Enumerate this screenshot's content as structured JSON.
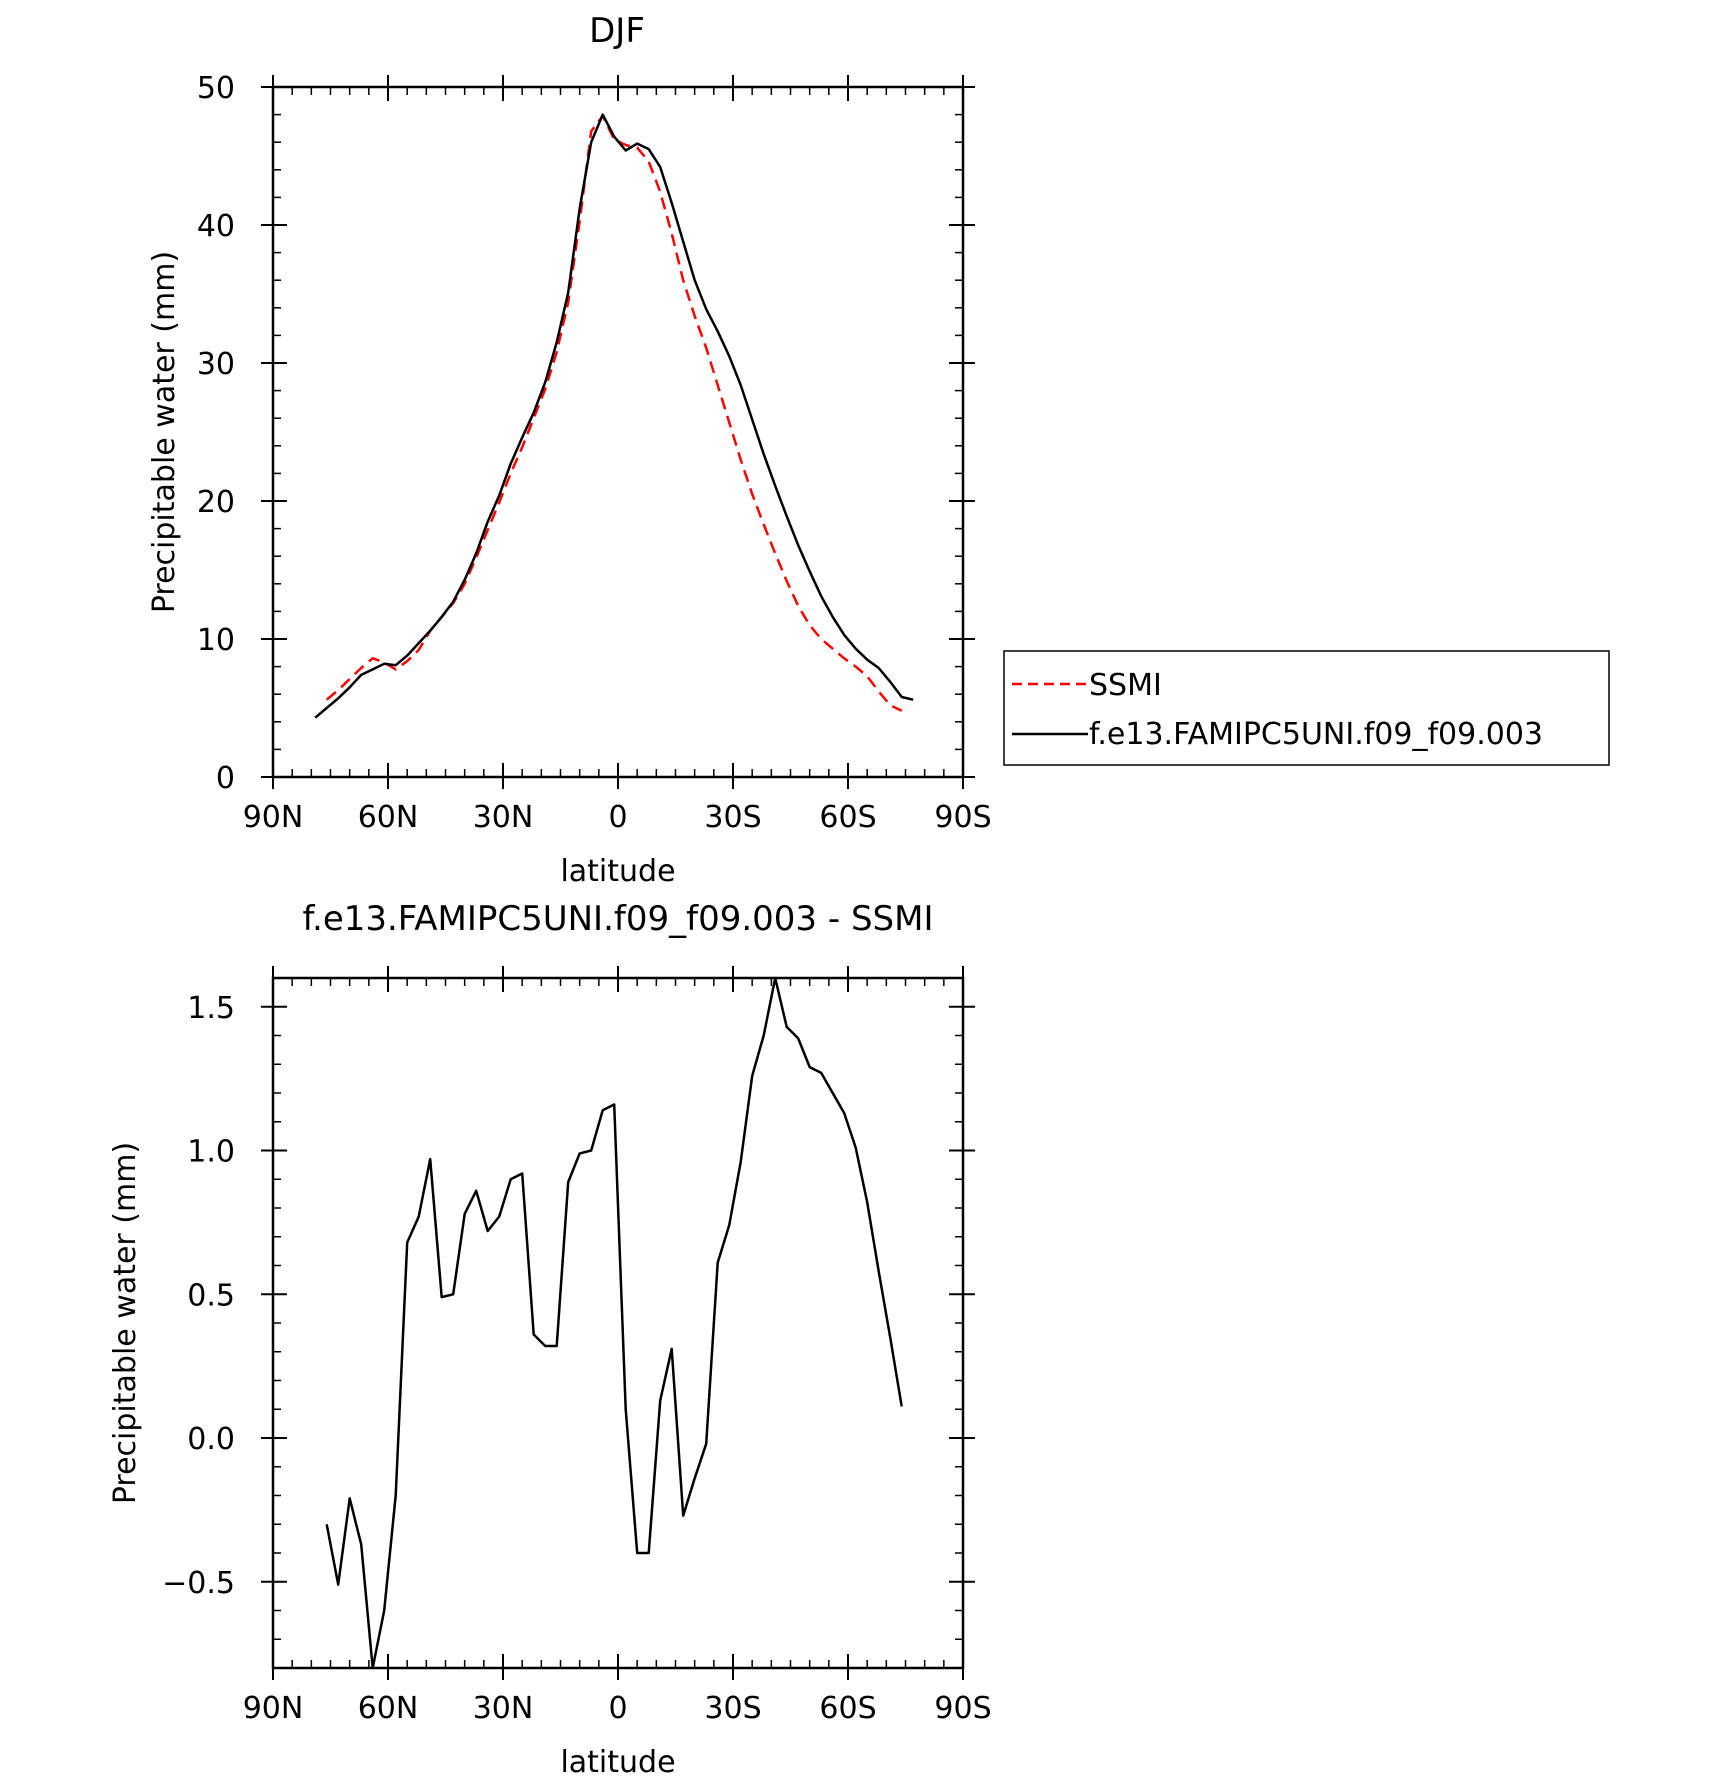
{
  "chart_data": [
    {
      "type": "line",
      "title": "DJF",
      "xlabel": "latitude",
      "ylabel": "Precipitable water (mm)",
      "xlim": [
        90,
        -90
      ],
      "ylim": [
        0,
        50
      ],
      "x_ticks": [
        90,
        60,
        30,
        0,
        -30,
        -60,
        -90
      ],
      "x_tick_labels": [
        "90N",
        "60N",
        "30N",
        "0",
        "30S",
        "60S",
        "90S"
      ],
      "y_ticks": [
        0,
        10,
        20,
        30,
        40,
        50
      ],
      "y_tick_labels": [
        "0",
        "10",
        "20",
        "30",
        "40",
        "50"
      ],
      "legend": {
        "placement": "right",
        "entries": [
          {
            "label": "SSMI",
            "color": "#ff0000",
            "style": "dashed"
          },
          {
            "label": "f.e13.FAMIPC5UNI.f09_f09.003",
            "color": "#000000",
            "style": "solid"
          }
        ]
      },
      "series": [
        {
          "name": "SSMI",
          "color": "#ff0000",
          "style": "dashed",
          "x": [
            76,
            73,
            70,
            67,
            64,
            61,
            58,
            55,
            52,
            49,
            46,
            43,
            40,
            37,
            34,
            31,
            28,
            25,
            22,
            19,
            16,
            13,
            10,
            7,
            4,
            1,
            -2,
            -5,
            -8,
            -11,
            -14,
            -17,
            -20,
            -23,
            -26,
            -29,
            -32,
            -35,
            -38,
            -41,
            -44,
            -47,
            -50,
            -53,
            -56,
            -59,
            -62,
            -65,
            -68,
            -71,
            -74
          ],
          "y": [
            5.6,
            6.3,
            7.1,
            7.9,
            8.6,
            8.3,
            7.8,
            8.4,
            9.2,
            10.6,
            11.6,
            12.6,
            14.0,
            15.9,
            17.9,
            19.9,
            22.0,
            23.9,
            26.0,
            28.1,
            30.8,
            34.4,
            40.3,
            46.8,
            47.9,
            46.2,
            45.8,
            45.6,
            44.6,
            42.4,
            39.4,
            36.0,
            33.4,
            31.1,
            28.4,
            25.7,
            23.0,
            20.5,
            18.3,
            16.2,
            14.2,
            12.4,
            11.0,
            10.0,
            9.3,
            8.6,
            8.0,
            7.3,
            6.2,
            5.2,
            4.8
          ]
        },
        {
          "name": "f.e13.FAMIPC5UNI.f09_f09.003",
          "color": "#000000",
          "style": "solid",
          "x": [
            79,
            76,
            73,
            70,
            67,
            64,
            61,
            58,
            55,
            52,
            49,
            46,
            43,
            40,
            37,
            34,
            31,
            28,
            25,
            22,
            19,
            16,
            13,
            10,
            7,
            4,
            1,
            -2,
            -5,
            -8,
            -11,
            -14,
            -17,
            -20,
            -23,
            -26,
            -29,
            -32,
            -35,
            -38,
            -41,
            -44,
            -47,
            -50,
            -53,
            -56,
            -59,
            -62,
            -65,
            -68,
            -71,
            -74,
            -77
          ],
          "y": [
            4.3,
            5.0,
            5.7,
            6.5,
            7.4,
            7.8,
            8.2,
            8.1,
            8.8,
            9.7,
            10.6,
            11.6,
            12.7,
            14.3,
            16.2,
            18.5,
            20.4,
            22.7,
            24.6,
            26.4,
            28.6,
            31.5,
            35.1,
            41.2,
            46.0,
            48.0,
            46.4,
            45.4,
            45.9,
            45.5,
            44.2,
            41.6,
            38.8,
            36.0,
            33.9,
            32.3,
            30.5,
            28.4,
            25.9,
            23.4,
            21.1,
            18.9,
            16.8,
            14.9,
            13.1,
            11.6,
            10.3,
            9.3,
            8.5,
            7.9,
            6.9,
            5.8,
            5.6
          ]
        }
      ]
    },
    {
      "type": "line",
      "title": "f.e13.FAMIPC5UNI.f09_f09.003 - SSMI",
      "xlabel": "latitude",
      "ylabel": "Precipitable water (mm)",
      "xlim": [
        90,
        -90
      ],
      "ylim": [
        -0.8,
        1.6
      ],
      "x_ticks": [
        90,
        60,
        30,
        0,
        -30,
        -60,
        -90
      ],
      "x_tick_labels": [
        "90N",
        "60N",
        "30N",
        "0",
        "30S",
        "60S",
        "90S"
      ],
      "y_ticks": [
        -0.5,
        0.0,
        0.5,
        1.0,
        1.5
      ],
      "y_tick_labels": [
        "−0.5",
        "0.0",
        "0.5",
        "1.0",
        "1.5"
      ],
      "series": [
        {
          "color": "#000000",
          "style": "solid",
          "x": [
            76,
            73,
            70,
            67,
            64,
            61,
            58,
            55,
            52,
            49,
            46,
            43,
            40,
            37,
            34,
            31,
            28,
            25,
            22,
            19,
            16,
            13,
            10,
            7,
            4,
            1,
            -2,
            -5,
            -8,
            -11,
            -14,
            -17,
            -20,
            -23,
            -26,
            -29,
            -32,
            -35,
            -38,
            -41,
            -44,
            -47,
            -50,
            -53,
            -56,
            -59,
            -62,
            -65,
            -68,
            -71,
            -74
          ],
          "y": [
            -0.3,
            -0.51,
            -0.21,
            -0.37,
            -0.8,
            -0.6,
            -0.2,
            0.68,
            0.77,
            0.97,
            0.49,
            0.5,
            0.78,
            0.86,
            0.72,
            0.77,
            0.9,
            0.92,
            0.36,
            0.32,
            0.32,
            0.89,
            0.99,
            1.0,
            1.14,
            1.16,
            0.1,
            -0.4,
            -0.4,
            0.13,
            0.31,
            -0.27,
            -0.14,
            -0.02,
            0.61,
            0.74,
            0.96,
            1.26,
            1.4,
            1.6,
            1.43,
            1.39,
            1.29,
            1.27,
            1.2,
            1.13,
            1.01,
            0.82,
            0.58,
            0.35,
            0.11
          ]
        }
      ]
    }
  ]
}
